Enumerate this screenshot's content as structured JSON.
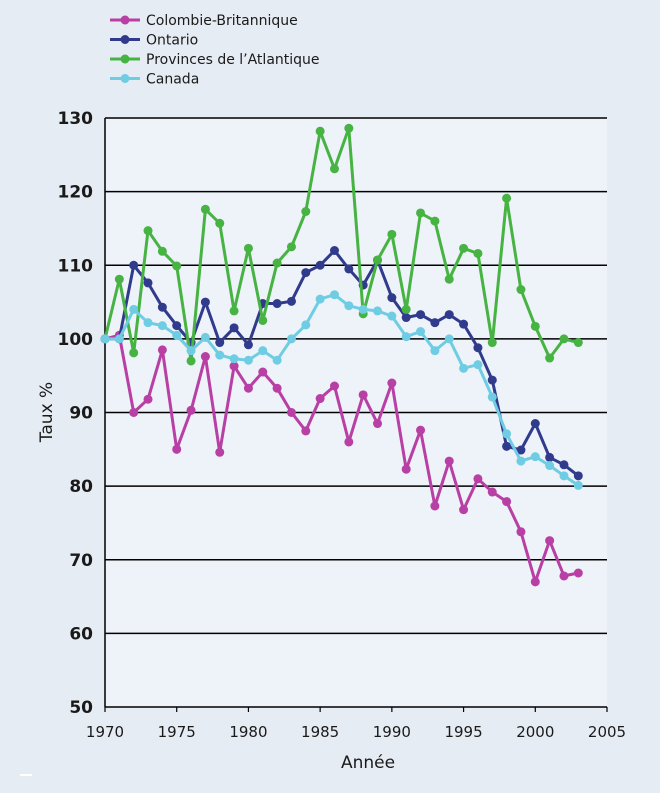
{
  "chart_data": {
    "type": "line",
    "title": "",
    "xlabel": "Année",
    "ylabel": "Taux  %",
    "xlim": [
      1970,
      2005
    ],
    "ylim": [
      50,
      130
    ],
    "x_ticks": [
      "1970",
      "1975",
      "1980",
      "1985",
      "1990",
      "1995",
      "2000",
      "2005"
    ],
    "y_ticks": [
      "50",
      "60",
      "70",
      "80",
      "90",
      "100",
      "110",
      "120",
      "130"
    ],
    "grid": "horizontal",
    "legend_position": "top-left",
    "series": [
      {
        "name": "Colombie-Britannique",
        "color": "#b83fa4",
        "x": [
          1970,
          1971,
          1972,
          1973,
          1974,
          1975,
          1976,
          1977,
          1978,
          1979,
          1980,
          1981,
          1982,
          1983,
          1984,
          1985,
          1986,
          1987,
          1988,
          1989,
          1990,
          1991,
          1992,
          1993,
          1994,
          1995,
          1996,
          1997,
          1998,
          1999,
          2000,
          2001,
          2002,
          2003
        ],
        "y": [
          100,
          100.5,
          90,
          91.8,
          98.5,
          85,
          90.3,
          97.6,
          84.6,
          96.3,
          93.3,
          95.5,
          93.3,
          90,
          87.5,
          91.9,
          93.6,
          86,
          92.4,
          88.5,
          94,
          82.3,
          87.6,
          77.3,
          83.4,
          76.8,
          81,
          79.2,
          77.9,
          73.8,
          67,
          72.6,
          67.8,
          68.2
        ]
      },
      {
        "name": "Ontario",
        "color": "#303b8c",
        "x": [
          1970,
          1971,
          1972,
          1973,
          1974,
          1975,
          1976,
          1977,
          1978,
          1979,
          1980,
          1981,
          1982,
          1983,
          1984,
          1985,
          1986,
          1987,
          1988,
          1989,
          1990,
          1991,
          1992,
          1993,
          1994,
          1995,
          1996,
          1997,
          1998,
          1999,
          2000,
          2001,
          2002,
          2003
        ],
        "y": [
          100,
          100,
          110,
          107.6,
          104.3,
          101.8,
          99.5,
          105,
          99.5,
          101.5,
          99.2,
          104.8,
          104.8,
          105.1,
          109,
          110,
          112,
          109.5,
          107.3,
          110.7,
          105.6,
          102.9,
          103.3,
          102.2,
          103.3,
          102,
          98.8,
          94.4,
          85.4,
          84.9,
          88.5,
          83.9,
          82.9,
          81.4
        ]
      },
      {
        "name": "Provinces de l’Atlantique",
        "color": "#46b342",
        "x": [
          1970,
          1971,
          1972,
          1973,
          1974,
          1975,
          1976,
          1977,
          1978,
          1979,
          1980,
          1981,
          1982,
          1983,
          1984,
          1985,
          1986,
          1987,
          1988,
          1989,
          1990,
          1991,
          1992,
          1993,
          1994,
          1995,
          1996,
          1997,
          1998,
          1999,
          2000,
          2001,
          2002,
          2003
        ],
        "y": [
          100,
          108.1,
          98.1,
          114.7,
          111.9,
          109.9,
          97,
          117.6,
          115.7,
          103.8,
          112.3,
          102.5,
          110.3,
          112.5,
          117.3,
          128.2,
          123.1,
          128.6,
          103.4,
          110.7,
          114.2,
          104,
          117.1,
          116,
          108.1,
          112.3,
          111.6,
          99.5,
          119.1,
          106.7,
          101.7,
          97.4,
          100,
          99.5
        ]
      },
      {
        "name": "Canada",
        "color": "#6fcde3",
        "x": [
          1970,
          1971,
          1972,
          1973,
          1974,
          1975,
          1976,
          1977,
          1978,
          1979,
          1980,
          1981,
          1982,
          1983,
          1984,
          1985,
          1986,
          1987,
          1988,
          1989,
          1990,
          1991,
          1992,
          1993,
          1994,
          1995,
          1996,
          1997,
          1998,
          1999,
          2000,
          2001,
          2002,
          2003
        ],
        "y": [
          100,
          100,
          104,
          102.2,
          101.8,
          100.5,
          98.4,
          100.2,
          97.8,
          97.3,
          97.1,
          98.4,
          97.1,
          100,
          101.9,
          105.4,
          106,
          104.5,
          104,
          103.8,
          103.1,
          100.3,
          101,
          98.4,
          100,
          96,
          96.5,
          92.1,
          87.1,
          83.4,
          84,
          82.8,
          81.4,
          80.1
        ]
      }
    ]
  }
}
